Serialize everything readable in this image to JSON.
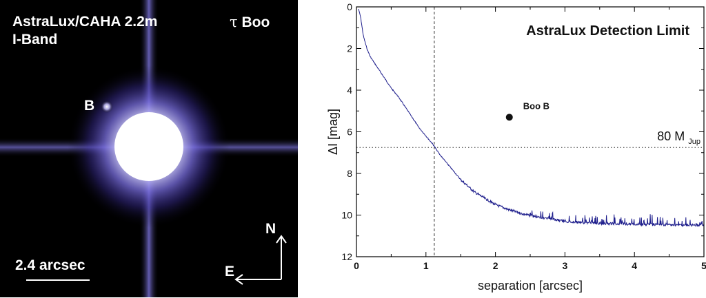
{
  "image_panel": {
    "instrument_label": "AstraLux/CAHA 2.2m",
    "band_label": "I-Band",
    "target_prefix": "τ",
    "target_name": "Boo",
    "companion_label": "B",
    "scale_label": "2.4 arcsec",
    "north_label": "N",
    "east_label": "E",
    "colors": {
      "background": "#000000",
      "halo": "#6a5fd8",
      "core": "#ffffff"
    }
  },
  "chart_data": {
    "type": "line",
    "title": "AstraLux Detection Limit",
    "xlabel": "separation [arcsec]",
    "ylabel": "ΔI [mag]",
    "xlim": [
      0,
      5
    ],
    "ylim": [
      0,
      12
    ],
    "y_inverted": true,
    "x_ticks": [
      "0",
      "1",
      "2",
      "3",
      "4",
      "5"
    ],
    "y_ticks": [
      "0",
      "2",
      "4",
      "6",
      "8",
      "10",
      "12"
    ],
    "series": [
      {
        "color": "#1e1e8c",
        "x": [
          0.03,
          0.06,
          0.1,
          0.15,
          0.2,
          0.3,
          0.4,
          0.5,
          0.6,
          0.7,
          0.8,
          0.9,
          1.0,
          1.1,
          1.2,
          1.3,
          1.4,
          1.5,
          1.6,
          1.7,
          1.8,
          1.9,
          2.0,
          2.2,
          2.4,
          2.6,
          2.8,
          3.0,
          3.2,
          3.5,
          3.8,
          4.0,
          4.3,
          4.6,
          5.0
        ],
        "y": [
          0.1,
          0.5,
          1.4,
          2.0,
          2.4,
          2.9,
          3.4,
          3.9,
          4.3,
          4.8,
          5.3,
          5.8,
          6.2,
          6.6,
          7.1,
          7.5,
          7.9,
          8.3,
          8.6,
          8.9,
          9.1,
          9.3,
          9.5,
          9.75,
          9.95,
          10.1,
          10.2,
          10.3,
          10.35,
          10.4,
          10.42,
          10.44,
          10.45,
          10.47,
          10.48
        ]
      }
    ],
    "point": {
      "label": "Boo B",
      "x": 2.2,
      "y": 5.3
    },
    "hline": {
      "y": 6.75,
      "label": "80 M",
      "label_sub": "Jup"
    },
    "vline": {
      "x": 1.12
    },
    "grid": false
  }
}
